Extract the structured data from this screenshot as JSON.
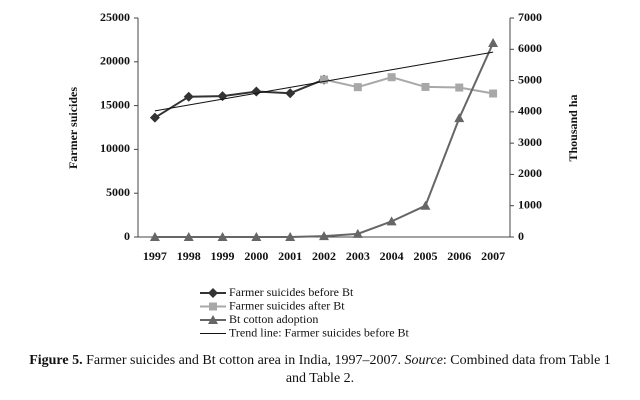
{
  "chart_data": {
    "type": "line",
    "y_label": "Farmer suicides",
    "y2_label": "Thousand ha",
    "categories": [
      "1997",
      "1998",
      "1999",
      "2000",
      "2001",
      "2002",
      "2003",
      "2004",
      "2005",
      "2006",
      "2007"
    ],
    "ylim": [
      0,
      25000
    ],
    "yticks": [
      0,
      5000,
      10000,
      15000,
      20000,
      25000
    ],
    "y2lim": [
      0,
      7000
    ],
    "y2ticks": [
      0,
      1000,
      2000,
      3000,
      4000,
      5000,
      6000,
      7000
    ],
    "grid": false,
    "series": [
      {
        "name": "Farmer suicides before Bt",
        "color": "#333333",
        "marker": "diamond",
        "values": [
          13622,
          16015,
          16082,
          16603,
          16415,
          17971,
          null,
          null,
          null,
          null,
          null
        ]
      },
      {
        "name": "Farmer suicides after Bt",
        "color": "#a8a8a8",
        "marker": "square",
        "values": [
          null,
          null,
          null,
          null,
          null,
          17971,
          17107,
          18241,
          17131,
          17060,
          16379
        ]
      },
      {
        "name": "Bt cotton adoption",
        "color": "#666666",
        "marker": "triangle",
        "axis": "y2",
        "values": [
          0,
          0,
          0,
          0,
          0,
          29,
          100,
          500,
          1000,
          3800,
          6200
        ]
      },
      {
        "name": "Trend line: Farmer suicides before Bt",
        "color": "#111111",
        "marker": "none",
        "values": [
          14400,
          15070,
          15740,
          16410,
          17080,
          17750,
          18420,
          19090,
          19760,
          20430,
          21100
        ]
      }
    ]
  },
  "caption": {
    "label": "Figure 5.",
    "text": "Farmer suicides and Bt cotton area in India, 1997–2007.",
    "source_label": "Source",
    "source_text": ": Combined data from Table 1 and Table 2."
  }
}
